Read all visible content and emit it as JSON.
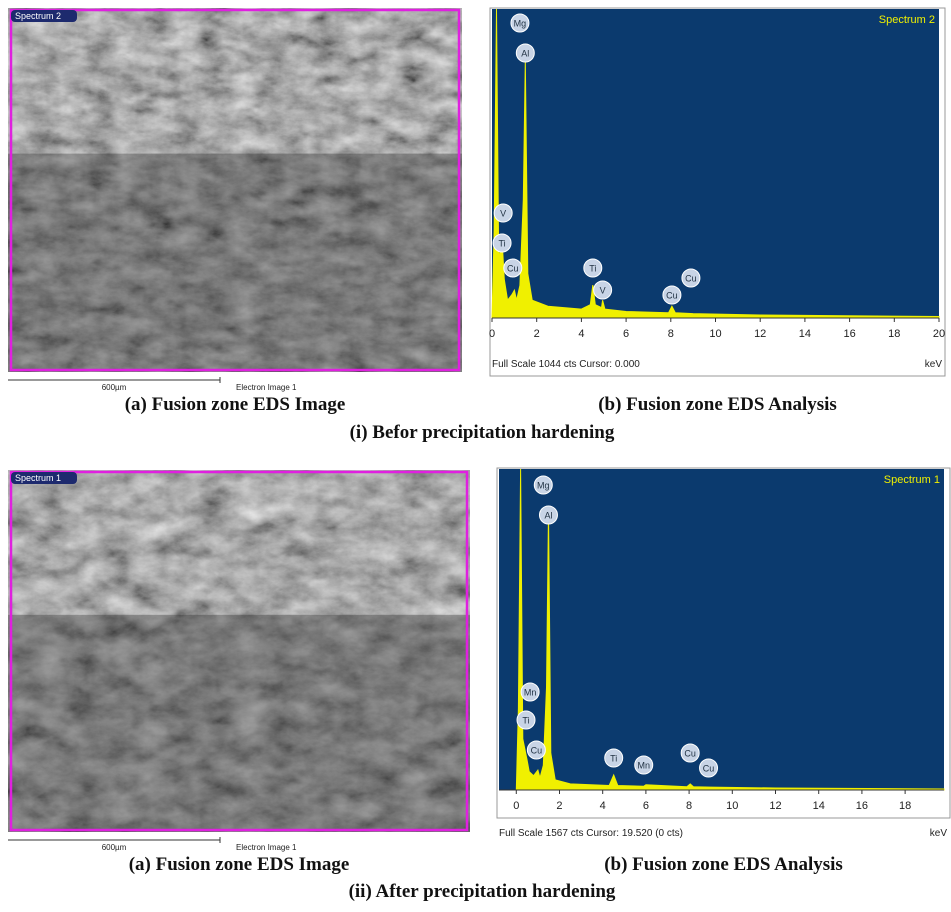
{
  "panels": [
    {
      "title": "(i) Befor precipitation hardening",
      "caption_a": "(a) Fusion zone EDS Image",
      "caption_b": "(b) Fusion zone EDS Analysis",
      "image": {
        "spectrum_label": "Spectrum 2",
        "scale_bar": "600µm",
        "image_label": "Electron Image 1"
      },
      "spectrum": {
        "type": "area",
        "label": "Spectrum 2",
        "status": "Full Scale 1044 cts Cursor: 0.000",
        "x_unit": "keV",
        "color": "#f0f000",
        "background": "#0b3a6e",
        "xlim": [
          0,
          20
        ],
        "ylim": [
          0,
          1044
        ],
        "xticks": [
          0,
          2,
          4,
          6,
          8,
          10,
          12,
          14,
          16,
          18,
          20
        ],
        "x": [
          0,
          0.1,
          0.2,
          0.3,
          0.45,
          0.55,
          0.7,
          0.9,
          1.0,
          1.1,
          1.25,
          1.4,
          1.49,
          1.6,
          1.8,
          2.5,
          4.0,
          4.4,
          4.51,
          4.62,
          4.9,
          4.95,
          5.05,
          6.0,
          7.9,
          8.05,
          8.2,
          9.0,
          12.0,
          20.0
        ],
        "values": [
          0,
          300,
          1044,
          200,
          262,
          130,
          60,
          80,
          94,
          60,
          110,
          400,
          869,
          150,
          60,
          40,
          30,
          45,
          111,
          45,
          35,
          60,
          30,
          22,
          18,
          40,
          18,
          15,
          10,
          5
        ],
        "peaks": [
          {
            "label": "Mg",
            "energy": 1.25
          },
          {
            "label": "Al",
            "energy": 1.49
          },
          {
            "label": "V",
            "energy": 0.5
          },
          {
            "label": "Ti",
            "energy": 0.45
          },
          {
            "label": "Cu",
            "energy": 0.93
          },
          {
            "label": "Ti",
            "energy": 4.51
          },
          {
            "label": "V",
            "energy": 4.95
          },
          {
            "label": "Cu",
            "energy": 8.05
          },
          {
            "label": "Cu",
            "energy": 8.9
          }
        ]
      }
    },
    {
      "title": "(ii) After precipitation hardening",
      "caption_a": "(a) Fusion zone EDS Image",
      "caption_b": "(b) Fusion zone EDS Analysis",
      "image": {
        "spectrum_label": "Spectrum 1",
        "scale_bar": "600µm",
        "image_label": "Electron Image 1"
      },
      "spectrum": {
        "type": "area",
        "label": "Spectrum 1",
        "status": "Full Scale 1567 cts Cursor: 19.520  (0 cts)",
        "x_unit": "keV",
        "color": "#f0f000",
        "background": "#0b3a6e",
        "xlim": [
          -0.8,
          19.8
        ],
        "ylim": [
          0,
          1567
        ],
        "xticks": [
          0,
          2,
          4,
          6,
          8,
          10,
          12,
          14,
          16,
          18
        ],
        "x": [
          -0.8,
          0.0,
          0.1,
          0.2,
          0.3,
          0.5,
          0.6,
          0.8,
          1.0,
          1.1,
          1.25,
          1.4,
          1.49,
          1.6,
          1.8,
          2.5,
          4.3,
          4.51,
          4.7,
          5.9,
          6.0,
          7.9,
          8.05,
          8.2,
          9.0,
          12.0,
          19.8
        ],
        "values": [
          0,
          0,
          400,
          1567,
          250,
          146,
          90,
          70,
          97,
          60,
          120,
          500,
          1363,
          180,
          50,
          30,
          22,
          73,
          22,
          18,
          26,
          16,
          30,
          16,
          14,
          10,
          5
        ],
        "peaks": [
          {
            "label": "Mg",
            "energy": 1.25
          },
          {
            "label": "Al",
            "energy": 1.49
          },
          {
            "label": "Mn",
            "energy": 0.64
          },
          {
            "label": "Ti",
            "energy": 0.45
          },
          {
            "label": "Cu",
            "energy": 0.93
          },
          {
            "label": "Ti",
            "energy": 4.51
          },
          {
            "label": "Mn",
            "energy": 5.9
          },
          {
            "label": "Cu",
            "energy": 8.05
          },
          {
            "label": "Cu",
            "energy": 8.9
          }
        ]
      }
    }
  ]
}
